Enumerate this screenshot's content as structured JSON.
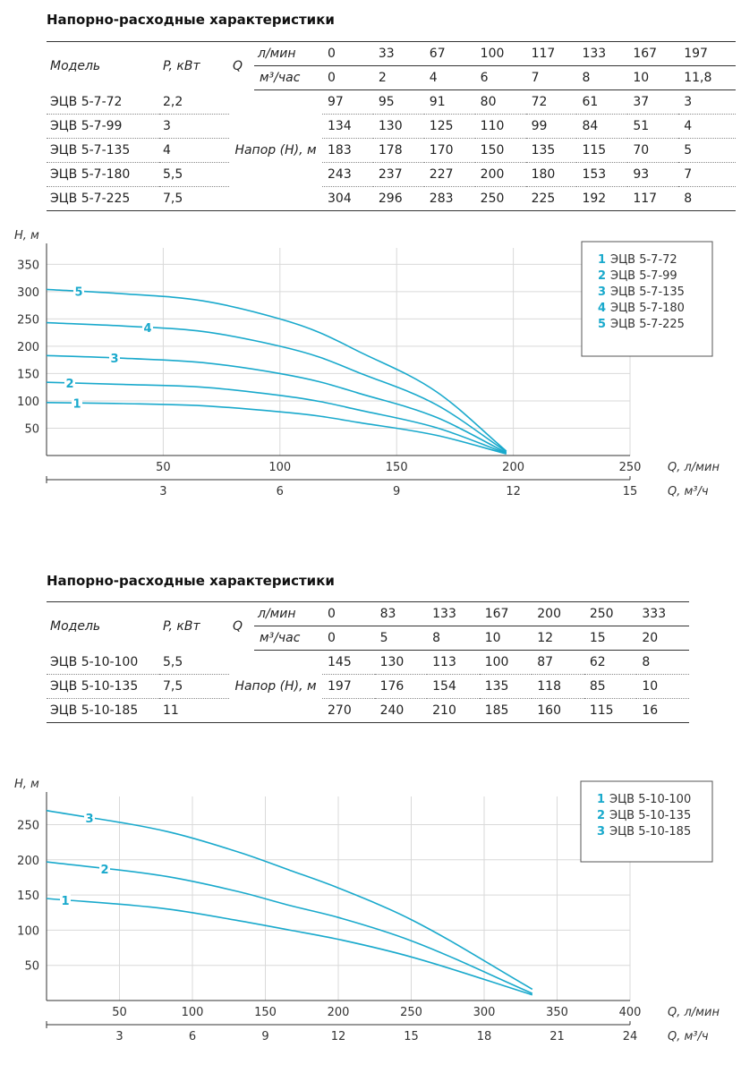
{
  "sections": [
    {
      "title": "Напорно-расходные характеристики",
      "table": {
        "model_header": "Модель",
        "power_header": "P, кВт",
        "q_label": "Q",
        "unit_lmin": "л/мин",
        "unit_m3h": "м³/час",
        "head_label": "Напор (H), м",
        "q_lmin": [
          "0",
          "33",
          "67",
          "100",
          "117",
          "133",
          "167",
          "197"
        ],
        "q_m3h": [
          "0",
          "2",
          "4",
          "6",
          "7",
          "8",
          "10",
          "11,8"
        ],
        "rows": [
          {
            "model": "ЭЦВ 5-7-72",
            "power": "2,2",
            "values": [
              "97",
              "95",
              "91",
              "80",
              "72",
              "61",
              "37",
              "3"
            ]
          },
          {
            "model": "ЭЦВ 5-7-99",
            "power": "3",
            "values": [
              "134",
              "130",
              "125",
              "110",
              "99",
              "84",
              "51",
              "4"
            ]
          },
          {
            "model": "ЭЦВ 5-7-135",
            "power": "4",
            "values": [
              "183",
              "178",
              "170",
              "150",
              "135",
              "115",
              "70",
              "5"
            ]
          },
          {
            "model": "ЭЦВ 5-7-180",
            "power": "5,5",
            "values": [
              "243",
              "237",
              "227",
              "200",
              "180",
              "153",
              "93",
              "7"
            ]
          },
          {
            "model": "ЭЦВ 5-7-225",
            "power": "7,5",
            "values": [
              "304",
              "296",
              "283",
              "250",
              "225",
              "192",
              "117",
              "8"
            ]
          }
        ]
      },
      "chart": {
        "ylabel": "H, м",
        "xlabel": "Q, л/мин",
        "x2label": "Q, м³/ч",
        "legend": [
          {
            "num": "1",
            "name": "ЭЦВ 5-7-72"
          },
          {
            "num": "2",
            "name": "ЭЦВ 5-7-99"
          },
          {
            "num": "3",
            "name": "ЭЦВ 5-7-135"
          },
          {
            "num": "4",
            "name": "ЭЦВ 5-7-180"
          },
          {
            "num": "5",
            "name": "ЭЦВ 5-7-225"
          }
        ]
      }
    },
    {
      "title": "Напорно-расходные характеристики",
      "table": {
        "model_header": "Модель",
        "power_header": "P, кВт",
        "q_label": "Q",
        "unit_lmin": "л/мин",
        "unit_m3h": "м³/час",
        "head_label": "Напор (H), м",
        "q_lmin": [
          "0",
          "83",
          "133",
          "167",
          "200",
          "250",
          "333"
        ],
        "q_m3h": [
          "0",
          "5",
          "8",
          "10",
          "12",
          "15",
          "20"
        ],
        "rows": [
          {
            "model": "ЭЦВ 5-10-100",
            "power": "5,5",
            "values": [
              "145",
              "130",
              "113",
              "100",
              "87",
              "62",
              "8"
            ]
          },
          {
            "model": "ЭЦВ 5-10-135",
            "power": "7,5",
            "values": [
              "197",
              "176",
              "154",
              "135",
              "118",
              "85",
              "10"
            ]
          },
          {
            "model": "ЭЦВ 5-10-185",
            "power": "11",
            "values": [
              "270",
              "240",
              "210",
              "185",
              "160",
              "115",
              "16"
            ]
          }
        ]
      },
      "chart": {
        "ylabel": "H, м",
        "xlabel": "Q, л/мин",
        "x2label": "Q, м³/ч",
        "legend": [
          {
            "num": "1",
            "name": "ЭЦВ 5-10-100"
          },
          {
            "num": "2",
            "name": "ЭЦВ 5-10-135"
          },
          {
            "num": "3",
            "name": "ЭЦВ 5-10-185"
          }
        ]
      }
    }
  ],
  "chart_data": [
    {
      "type": "line",
      "ylabel": "H, м",
      "xlabel": "Q, л/мин",
      "x2label": "Q, м³/ч",
      "xlim": [
        0,
        250
      ],
      "ylim": [
        0,
        380
      ],
      "x2lim": [
        0,
        15
      ],
      "xticks": [
        50,
        100,
        150,
        200,
        250
      ],
      "yticks": [
        50,
        100,
        150,
        200,
        250,
        300,
        350
      ],
      "x2ticks": [
        3,
        6,
        9,
        12,
        15
      ],
      "grid": true,
      "legend_position": "top-right",
      "color": "#19a9cc",
      "x": [
        0,
        33,
        67,
        100,
        117,
        133,
        167,
        197
      ],
      "series": [
        {
          "name": "ЭЦВ 5-7-72",
          "label": "1",
          "values": [
            97,
            95,
            91,
            80,
            72,
            61,
            37,
            3
          ]
        },
        {
          "name": "ЭЦВ 5-7-99",
          "label": "2",
          "values": [
            134,
            130,
            125,
            110,
            99,
            84,
            51,
            4
          ]
        },
        {
          "name": "ЭЦВ 5-7-135",
          "label": "3",
          "values": [
            183,
            178,
            170,
            150,
            135,
            115,
            70,
            5
          ]
        },
        {
          "name": "ЭЦВ 5-7-180",
          "label": "4",
          "values": [
            243,
            237,
            227,
            200,
            180,
            153,
            93,
            7
          ]
        },
        {
          "name": "ЭЦВ 5-7-225",
          "label": "5",
          "values": [
            304,
            296,
            283,
            250,
            225,
            192,
            117,
            8
          ]
        }
      ]
    },
    {
      "type": "line",
      "ylabel": "H, м",
      "xlabel": "Q, л/мин",
      "x2label": "Q, м³/ч",
      "xlim": [
        0,
        400
      ],
      "ylim": [
        0,
        290
      ],
      "x2lim": [
        0,
        24
      ],
      "xticks": [
        50,
        100,
        150,
        200,
        250,
        300,
        350,
        400
      ],
      "yticks": [
        50,
        100,
        150,
        200,
        250
      ],
      "x2ticks": [
        3,
        6,
        9,
        12,
        15,
        18,
        21,
        24
      ],
      "grid": true,
      "legend_position": "top-right",
      "color": "#19a9cc",
      "x": [
        0,
        83,
        133,
        167,
        200,
        250,
        333
      ],
      "series": [
        {
          "name": "ЭЦВ 5-10-100",
          "label": "1",
          "values": [
            145,
            130,
            113,
            100,
            87,
            62,
            8
          ]
        },
        {
          "name": "ЭЦВ 5-10-135",
          "label": "2",
          "values": [
            197,
            176,
            154,
            135,
            118,
            85,
            10
          ]
        },
        {
          "name": "ЭЦВ 5-10-185",
          "label": "3",
          "values": [
            270,
            240,
            210,
            185,
            160,
            115,
            16
          ]
        }
      ]
    }
  ]
}
